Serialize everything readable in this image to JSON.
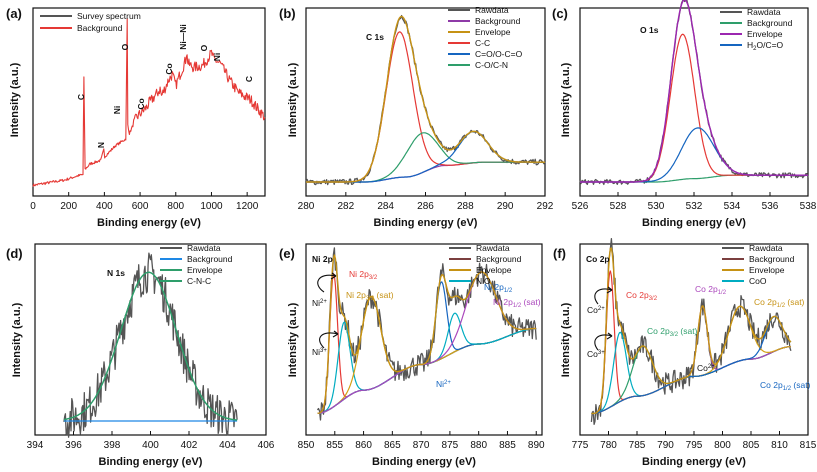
{
  "chart_data": [
    {
      "type": "line",
      "panel": "(a)",
      "xlabel": "Binding energy (eV)",
      "ylabel": "Intensity (a.u.)",
      "xlim": [
        0,
        1300
      ],
      "xticks": [
        "0",
        "200",
        "400",
        "600",
        "800",
        "1000",
        "1200"
      ],
      "xtick_values": [
        0,
        200,
        400,
        600,
        800,
        1000,
        1200
      ],
      "legend": [
        "Survey spectrum",
        "Background"
      ],
      "series": [
        {
          "name": "Survey spectrum",
          "color": "#e53935",
          "x": [
            0,
            60,
            120,
            180,
            240,
            280,
            285,
            292,
            320,
            380,
            397,
            402,
            460,
            520,
            528,
            531,
            540,
            580,
            640,
            650,
            700,
            712,
            720,
            760,
            780,
            800,
            855,
            860,
            870,
            900,
            950,
            1000,
            1010,
            1050,
            1100,
            1150,
            1200,
            1220,
            1250,
            1300
          ],
          "y": [
            0.06,
            0.07,
            0.08,
            0.09,
            0.11,
            0.12,
            0.66,
            0.15,
            0.18,
            0.2,
            0.26,
            0.22,
            0.28,
            0.32,
            0.99,
            0.4,
            0.35,
            0.44,
            0.5,
            0.52,
            0.58,
            0.6,
            0.56,
            0.65,
            0.68,
            0.62,
            0.76,
            0.8,
            0.74,
            0.72,
            0.73,
            0.8,
            0.77,
            0.74,
            0.65,
            0.58,
            0.55,
            0.54,
            0.5,
            0.44
          ]
        }
      ],
      "annotations": [
        {
          "text": "C",
          "x": 285,
          "y": 0.7
        },
        {
          "text": "N",
          "x": 400,
          "y": 0.3
        },
        {
          "text": "Ni",
          "x": 650,
          "y": 0.56
        },
        {
          "text": "O",
          "x": 531,
          "y": 1.03
        },
        {
          "text": "Co",
          "x": 712,
          "y": 0.64
        },
        {
          "text": "Co",
          "x": 780,
          "y": 0.72
        },
        {
          "text": "Ni—Ni",
          "x": 860,
          "y": 0.84
        },
        {
          "text": "O",
          "x": 975,
          "y": 0.82
        },
        {
          "text": "Ni",
          "x": 1010,
          "y": 0.8
        },
        {
          "text": "C",
          "x": 1220,
          "y": 0.58
        }
      ]
    },
    {
      "type": "line",
      "panel": "(b)",
      "title": "C 1s",
      "xlabel": "Binding energy (eV)",
      "ylabel": "Intensity (a.u.)",
      "xlim": [
        280,
        292
      ],
      "xticks": [
        "280",
        "282",
        "284",
        "286",
        "288",
        "290",
        "292"
      ],
      "xtick_values": [
        280,
        282,
        284,
        286,
        288,
        290,
        292
      ],
      "legend": [
        "Rawdata",
        "Background",
        "Envelope",
        "C-C",
        "C=O/O-C=O",
        "C-O/C-N"
      ],
      "background": [
        [
          280,
          0.0
        ],
        [
          283,
          0.0
        ],
        [
          285,
          0.03
        ],
        [
          287,
          0.1
        ],
        [
          289,
          0.12
        ],
        [
          292,
          0.12
        ]
      ],
      "peaks": [
        {
          "name": "C-C",
          "center": 284.7,
          "height": 0.88,
          "fwhm": 1.6,
          "color": "#e53935"
        },
        {
          "name": "C-O/C-N",
          "center": 285.8,
          "height": 0.24,
          "fwhm": 1.8,
          "color": "#2e9e6b"
        },
        {
          "name": "C=O/O-C=O",
          "center": 288.4,
          "height": 0.19,
          "fwhm": 1.7,
          "color": "#1565c0"
        }
      ]
    },
    {
      "type": "line",
      "panel": "(c)",
      "title": "O 1s",
      "xlabel": "Binding energy (eV)",
      "ylabel": "Intensity (a.u.)",
      "xlim": [
        526,
        538
      ],
      "xticks": [
        "526",
        "528",
        "530",
        "532",
        "534",
        "536",
        "538"
      ],
      "xtick_values": [
        526,
        528,
        530,
        532,
        534,
        536,
        538
      ],
      "legend": [
        "Rawdata",
        "Background",
        "Envelope",
        "H2O/C=O"
      ],
      "legend_sub": "2",
      "background": [
        [
          526,
          0.0
        ],
        [
          530,
          0.0
        ],
        [
          532,
          0.02
        ],
        [
          534,
          0.04
        ],
        [
          538,
          0.04
        ]
      ],
      "peaks": [
        {
          "name": "O 1s main",
          "center": 531.4,
          "height": 0.86,
          "fwhm": 1.5,
          "color": "#e53935"
        },
        {
          "name": "H2O/C=O",
          "center": 532.2,
          "height": 0.3,
          "fwhm": 2.0,
          "color": "#1565c0"
        }
      ]
    },
    {
      "type": "line",
      "panel": "(d)",
      "title": "N 1s",
      "xlabel": "Binding energy (eV)",
      "ylabel": "Intensity (a.u.)",
      "xlim": [
        394,
        406
      ],
      "xticks": [
        "394",
        "396",
        "398",
        "400",
        "402",
        "404",
        "406"
      ],
      "xtick_values": [
        394,
        396,
        398,
        400,
        402,
        404,
        406
      ],
      "legend": [
        "Rawdata",
        "Background",
        "Envelope",
        "C-N-C"
      ],
      "background": [
        [
          395.5,
          0.0
        ],
        [
          404.5,
          0.0
        ]
      ],
      "peaks": [
        {
          "name": "C-N-C",
          "center": 399.9,
          "height": 0.8,
          "fwhm": 3.4,
          "color": "#2e9e6b"
        }
      ]
    },
    {
      "type": "line",
      "panel": "(e)",
      "title": "Ni 2p",
      "xlabel": "Binding energy (eV)",
      "ylabel": "Intensity (a.u.)",
      "xlim": [
        850,
        891
      ],
      "xticks": [
        "850",
        "855",
        "860",
        "865",
        "870",
        "875",
        "880",
        "885",
        "890"
      ],
      "xtick_values": [
        850,
        855,
        860,
        865,
        870,
        875,
        880,
        885,
        890
      ],
      "legend": [
        "Rawdata",
        "Background",
        "Envelope",
        "NiO"
      ],
      "background": [
        [
          852,
          0.03
        ],
        [
          860,
          0.12
        ],
        [
          870,
          0.22
        ],
        [
          880,
          0.3
        ],
        [
          890,
          0.36
        ]
      ],
      "peaks": [
        {
          "name": "Ni 2p3/2",
          "center": 854.8,
          "height": 0.52,
          "fwhm": 1.6,
          "color": "#e53935"
        },
        {
          "name": "NiO",
          "center": 856.6,
          "height": 0.3,
          "fwhm": 2.4,
          "color": "#00acc1"
        },
        {
          "name": "Ni 2p3/2 (sat)",
          "center": 861.3,
          "height": 0.36,
          "fwhm": 4.0,
          "color": "#d4a017"
        },
        {
          "name": "Ni 2p1/2",
          "center": 873.5,
          "height": 0.3,
          "fwhm": 2.2,
          "color": "#1565c0"
        },
        {
          "name": "NiO 2",
          "center": 875.8,
          "height": 0.15,
          "fwhm": 2.6,
          "color": "#00acc1"
        },
        {
          "name": "Ni 2p1/2 (sat)",
          "center": 880.5,
          "height": 0.28,
          "fwhm": 6.0,
          "color": "#ab47bc"
        }
      ],
      "annotations": [
        {
          "text": "Ni 2p",
          "sub": "3/2",
          "color": "#e53935"
        },
        {
          "text": "Ni 2p",
          "sub": "3/2",
          "tail": " (sat)",
          "color": "#c69214"
        },
        {
          "text": "Ni 2p",
          "sub": "1/2",
          "color": "#1565c0"
        },
        {
          "text": "Ni 2p",
          "sub": "1/2",
          "tail": " (sat)",
          "color": "#ab47bc"
        },
        {
          "text": "Ni",
          "sup": "2+",
          "color": "#111"
        },
        {
          "text": "Ni",
          "sup": "3+",
          "color": "#111"
        },
        {
          "text": "Ni",
          "sup": "2+",
          "color": "#1565c0"
        }
      ]
    },
    {
      "type": "line",
      "panel": "(f)",
      "title": "Co 2p",
      "xlabel": "Binding energy (eV)",
      "ylabel": "Intensity (a.u.)",
      "xlim": [
        775,
        815
      ],
      "xticks": [
        "775",
        "780",
        "785",
        "790",
        "795",
        "800",
        "805",
        "810",
        "815"
      ],
      "xtick_values": [
        775,
        780,
        785,
        790,
        795,
        800,
        805,
        810,
        815
      ],
      "legend": [
        "Rawdata",
        "Background",
        "Envelope",
        "CoO"
      ],
      "background": [
        [
          777,
          0.03
        ],
        [
          785,
          0.1
        ],
        [
          795,
          0.18
        ],
        [
          805,
          0.25
        ],
        [
          812,
          0.3
        ]
      ],
      "peaks": [
        {
          "name": "Co 2p3/2",
          "center": 780.3,
          "height": 0.55,
          "fwhm": 1.6,
          "color": "#e53935"
        },
        {
          "name": "CoO",
          "center": 782.0,
          "height": 0.28,
          "fwhm": 2.6,
          "color": "#00acc1"
        },
        {
          "name": "Co 2p3/2 (sat)",
          "center": 786.0,
          "height": 0.2,
          "fwhm": 4.0,
          "color": "#2e9e6b"
        },
        {
          "name": "Co 2p1/2",
          "center": 796.5,
          "height": 0.28,
          "fwhm": 2.0,
          "color": "#ab47bc"
        },
        {
          "name": "Co 2p1/2 (sat)",
          "center": 803.0,
          "height": 0.22,
          "fwhm": 4.5,
          "color": "#d4a017"
        },
        {
          "name": "Co 2p1/2 (sat) b",
          "center": 809.0,
          "height": 0.14,
          "fwhm": 3.5,
          "color": "#1565c0"
        }
      ],
      "annotations": [
        {
          "text": "Co 2p",
          "sub": "3/2",
          "color": "#e53935"
        },
        {
          "text": "Co 2p",
          "sub": "3/2",
          "tail": " (sat)",
          "color": "#2e9e6b"
        },
        {
          "text": "Co 2p",
          "sub": "1/2",
          "color": "#ab47bc"
        },
        {
          "text": "Co 2p",
          "sub": "1/2",
          "tail": " (sat)",
          "color": "#c69214"
        },
        {
          "text": "Co 2p",
          "sub": "1/2",
          "tail": " (sat)",
          "color": "#1565c0"
        },
        {
          "text": "Co",
          "sup": "2+",
          "color": "#111"
        },
        {
          "text": "Co",
          "sup": "3+",
          "color": "#111"
        },
        {
          "text": "Co",
          "sup": "2+",
          "color": "#111"
        }
      ]
    }
  ]
}
